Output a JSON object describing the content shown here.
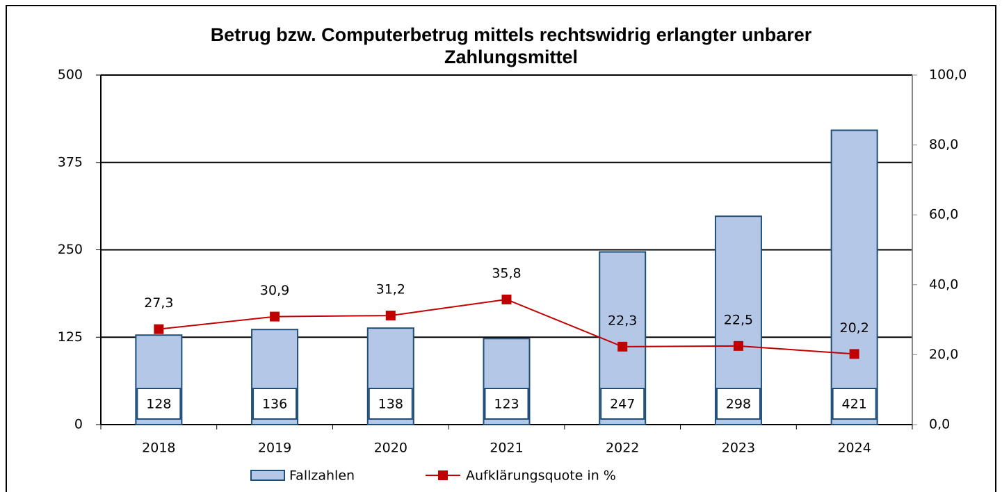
{
  "chart_data": {
    "type": "bar",
    "title": "Betrug bzw. Computerbetrug mittels rechtswidrig erlangter unbarer Zahlungsmittel",
    "categories": [
      "2018",
      "2019",
      "2020",
      "2021",
      "2022",
      "2023",
      "2024"
    ],
    "series": [
      {
        "name": "Fallzahlen",
        "type": "bar",
        "color": "#b4c7e7",
        "values": [
          128,
          136,
          138,
          123,
          247,
          298,
          421
        ]
      },
      {
        "name": "Aufklärungsquote in %",
        "type": "line",
        "axis": "y2",
        "color": "#c00000",
        "values": [
          27.3,
          30.9,
          31.2,
          35.8,
          22.3,
          22.5,
          20.2
        ],
        "value_labels": [
          "27,3",
          "30,9",
          "31,2",
          "35,8",
          "22,3",
          "22,5",
          "20,2"
        ]
      }
    ],
    "ylim": [
      0,
      500
    ],
    "yticks": [
      0,
      125,
      250,
      375,
      500
    ],
    "y2lim": [
      0,
      100
    ],
    "y2ticks": [
      {
        "value": 0,
        "label": "0,0"
      },
      {
        "value": 20,
        "label": "20,0"
      },
      {
        "value": 40,
        "label": "40,0"
      },
      {
        "value": 60,
        "label": "60,0"
      },
      {
        "value": 80,
        "label": "80,0"
      },
      {
        "value": 100,
        "label": "100,0"
      }
    ],
    "grid": true
  }
}
